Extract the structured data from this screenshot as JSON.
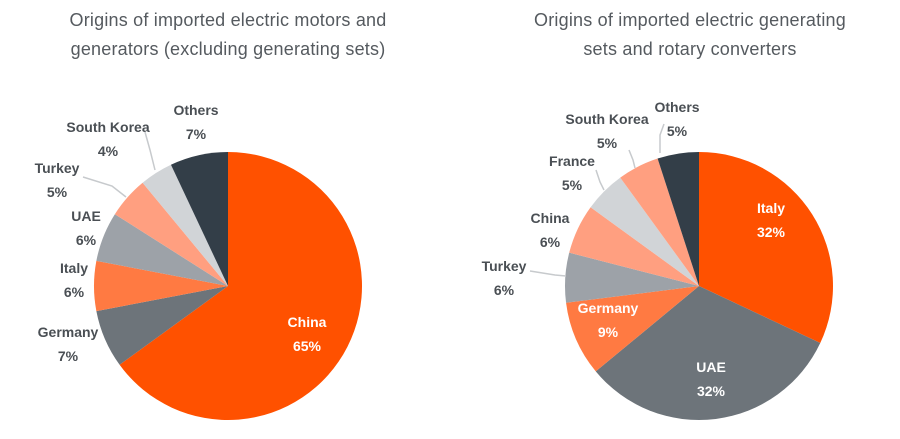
{
  "colors": {
    "orange": "#FF5100",
    "dark_gray": "#6D747A",
    "light_orange": "#FF7A42",
    "mid_gray": "#9DA2A8",
    "salmon": "#FF9F80",
    "light_gray": "#D1D4D7",
    "charcoal": "#333E48",
    "label_text": "#4a4f54",
    "leader_line": "#c7cacd"
  },
  "chart_data": [
    {
      "type": "pie",
      "title_lines": [
        "Origins of imported electric motors and",
        "generators (excluding generating sets)"
      ],
      "slices": [
        {
          "label": "China",
          "value": 65,
          "value_label": "65%",
          "color": "#FF5100",
          "label_inside": true
        },
        {
          "label": "Germany",
          "value": 7,
          "value_label": "7%",
          "color": "#6D747A",
          "label_inside": false
        },
        {
          "label": "Italy",
          "value": 6,
          "value_label": "6%",
          "color": "#FF7A42",
          "label_inside": false
        },
        {
          "label": "UAE",
          "value": 6,
          "value_label": "6%",
          "color": "#9DA2A8",
          "label_inside": false
        },
        {
          "label": "Turkey",
          "value": 5,
          "value_label": "5%",
          "color": "#FF9F80",
          "label_inside": false
        },
        {
          "label": "South Korea",
          "value": 4,
          "value_label": "4%",
          "color": "#D1D4D7",
          "label_inside": false
        },
        {
          "label": "Others",
          "value": 7,
          "value_label": "7%",
          "color": "#333E48",
          "label_inside": false
        }
      ]
    },
    {
      "type": "pie",
      "title_lines": [
        "Origins of imported electric generating",
        "sets and rotary converters"
      ],
      "slices": [
        {
          "label": "Italy",
          "value": 32,
          "value_label": "32%",
          "color": "#FF5100",
          "label_inside": true
        },
        {
          "label": "UAE",
          "value": 32,
          "value_label": "32%",
          "color": "#6D747A",
          "label_inside": true
        },
        {
          "label": "Germany",
          "value": 9,
          "value_label": "9%",
          "color": "#FF7A42",
          "label_inside": true
        },
        {
          "label": "Turkey",
          "value": 6,
          "value_label": "6%",
          "color": "#9DA2A8",
          "label_inside": false
        },
        {
          "label": "China",
          "value": 6,
          "value_label": "6%",
          "color": "#FF9F80",
          "label_inside": false
        },
        {
          "label": "France",
          "value": 5,
          "value_label": "5%",
          "color": "#D1D4D7",
          "label_inside": false
        },
        {
          "label": "South Korea",
          "value": 5,
          "value_label": "5%",
          "color": "#FF9F80",
          "label_inside": false
        },
        {
          "label": "Others",
          "value": 5,
          "value_label": "5%",
          "color": "#333E48",
          "label_inside": false
        }
      ]
    }
  ]
}
